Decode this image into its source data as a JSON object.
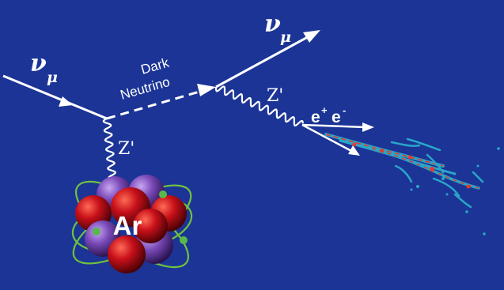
{
  "diagram": {
    "labels": {
      "nu_in": "ν",
      "nu_in_sub": "μ",
      "nu_out": "ν",
      "nu_out_sub": "μ",
      "dark_neutrino_line1": "Dark",
      "dark_neutrino_line2": "Neutrino",
      "zprime_lower": "Z'",
      "zprime_upper": "Z'",
      "pair_e1": "e",
      "pair_sup1": "+",
      "pair_e2": "e",
      "pair_sup2": "-",
      "nucleus": "Ar"
    },
    "colors": {
      "background": "#1b3496",
      "line": "#ffffff",
      "proton": "#c8101a",
      "neutron": "#7a4bb8",
      "orbit": "#6fc23f",
      "electron": "#59b84a",
      "track_outer": "#2aa6c9",
      "track_inner": "#e33a2a"
    },
    "icons": {
      "nucleus": "argon-nucleus-icon",
      "shower": "particle-shower-icon"
    }
  }
}
